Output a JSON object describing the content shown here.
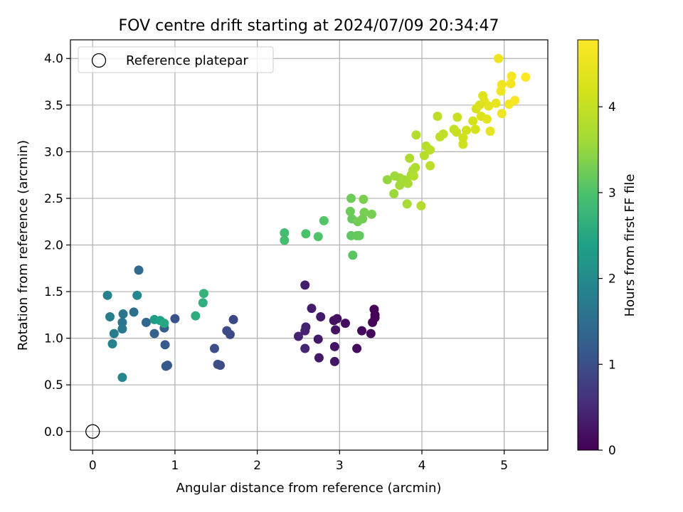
{
  "chart_data": {
    "type": "scatter",
    "title": "FOV centre drift starting at 2024/07/09 20:34:47",
    "xlabel": "Angular distance from reference (arcmin)",
    "ylabel": "Rotation from reference (arcmin)",
    "xlim": [
      -0.27,
      5.53
    ],
    "ylim": [
      -0.2,
      4.2
    ],
    "x_ticks": [
      0,
      1,
      2,
      3,
      4,
      5
    ],
    "y_ticks": [
      0.0,
      0.5,
      1.0,
      1.5,
      2.0,
      2.5,
      3.0,
      3.5,
      4.0
    ],
    "grid": true,
    "legend": {
      "placement": "top-left",
      "entries": [
        "Reference platepar"
      ]
    },
    "reference_point": {
      "x": 0,
      "y": 0,
      "name": "Reference platepar",
      "marker": "open-circle"
    },
    "colorbar": {
      "label": "Hours from first FF file",
      "colormap": "viridis",
      "range": [
        0,
        4.78
      ],
      "ticks": [
        0,
        1,
        2,
        3,
        4
      ]
    },
    "points": [
      {
        "x": 3.42,
        "y": 1.31,
        "c": 0.03
      },
      {
        "x": 3.43,
        "y": 1.25,
        "c": 0.04
      },
      {
        "x": 3.43,
        "y": 1.22,
        "c": 0.05
      },
      {
        "x": 3.4,
        "y": 1.17,
        "c": 0.06
      },
      {
        "x": 3.38,
        "y": 1.05,
        "c": 0.08
      },
      {
        "x": 3.27,
        "y": 1.08,
        "c": 0.1
      },
      {
        "x": 3.21,
        "y": 0.89,
        "c": 0.12
      },
      {
        "x": 3.07,
        "y": 1.16,
        "c": 0.14
      },
      {
        "x": 2.97,
        "y": 1.21,
        "c": 0.16
      },
      {
        "x": 2.93,
        "y": 1.19,
        "c": 0.18
      },
      {
        "x": 2.95,
        "y": 1.09,
        "c": 0.2
      },
      {
        "x": 2.94,
        "y": 0.91,
        "c": 0.22
      },
      {
        "x": 2.94,
        "y": 0.75,
        "c": 0.24
      },
      {
        "x": 2.75,
        "y": 0.79,
        "c": 0.27
      },
      {
        "x": 2.74,
        "y": 0.99,
        "c": 0.29
      },
      {
        "x": 2.77,
        "y": 1.23,
        "c": 0.31
      },
      {
        "x": 2.66,
        "y": 1.32,
        "c": 0.33
      },
      {
        "x": 2.58,
        "y": 1.57,
        "c": 0.36
      },
      {
        "x": 2.59,
        "y": 1.12,
        "c": 0.38
      },
      {
        "x": 2.58,
        "y": 1.08,
        "c": 0.4
      },
      {
        "x": 2.5,
        "y": 1.02,
        "c": 0.42
      },
      {
        "x": 2.58,
        "y": 0.89,
        "c": 0.44
      },
      {
        "x": 1.71,
        "y": 1.2,
        "c": 0.9
      },
      {
        "x": 1.67,
        "y": 1.04,
        "c": 0.92
      },
      {
        "x": 1.63,
        "y": 1.08,
        "c": 0.94
      },
      {
        "x": 1.55,
        "y": 0.71,
        "c": 0.96
      },
      {
        "x": 1.52,
        "y": 0.72,
        "c": 0.98
      },
      {
        "x": 1.48,
        "y": 0.89,
        "c": 1.0
      },
      {
        "x": 1.0,
        "y": 1.21,
        "c": 1.08
      },
      {
        "x": 0.91,
        "y": 0.71,
        "c": 1.12
      },
      {
        "x": 0.89,
        "y": 0.7,
        "c": 1.14
      },
      {
        "x": 0.88,
        "y": 0.93,
        "c": 1.18
      },
      {
        "x": 0.87,
        "y": 1.11,
        "c": 1.22
      },
      {
        "x": 0.75,
        "y": 1.05,
        "c": 1.3
      },
      {
        "x": 0.65,
        "y": 1.17,
        "c": 1.38
      },
      {
        "x": 0.56,
        "y": 1.73,
        "c": 1.45
      },
      {
        "x": 0.5,
        "y": 1.28,
        "c": 1.5
      },
      {
        "x": 0.37,
        "y": 1.26,
        "c": 1.6
      },
      {
        "x": 0.36,
        "y": 1.17,
        "c": 1.64
      },
      {
        "x": 0.36,
        "y": 1.1,
        "c": 1.68
      },
      {
        "x": 0.26,
        "y": 1.05,
        "c": 1.74
      },
      {
        "x": 0.21,
        "y": 1.23,
        "c": 1.78
      },
      {
        "x": 0.18,
        "y": 1.46,
        "c": 1.82
      },
      {
        "x": 0.24,
        "y": 0.94,
        "c": 1.86
      },
      {
        "x": 0.36,
        "y": 0.58,
        "c": 1.9
      },
      {
        "x": 0.54,
        "y": 1.46,
        "c": 1.94
      },
      {
        "x": 0.75,
        "y": 1.2,
        "c": 2.3
      },
      {
        "x": 0.82,
        "y": 1.19,
        "c": 2.4
      },
      {
        "x": 0.87,
        "y": 1.16,
        "c": 2.5
      },
      {
        "x": 1.25,
        "y": 1.24,
        "c": 2.6
      },
      {
        "x": 1.34,
        "y": 1.38,
        "c": 2.65
      },
      {
        "x": 1.35,
        "y": 1.48,
        "c": 2.7
      },
      {
        "x": 2.33,
        "y": 2.13,
        "c": 2.9
      },
      {
        "x": 2.33,
        "y": 2.05,
        "c": 2.92
      },
      {
        "x": 2.59,
        "y": 2.12,
        "c": 2.98
      },
      {
        "x": 2.74,
        "y": 2.09,
        "c": 3.02
      },
      {
        "x": 2.81,
        "y": 2.26,
        "c": 3.06
      },
      {
        "x": 3.16,
        "y": 1.89,
        "c": 3.1
      },
      {
        "x": 3.14,
        "y": 2.1,
        "c": 3.13
      },
      {
        "x": 3.24,
        "y": 2.1,
        "c": 3.15
      },
      {
        "x": 3.21,
        "y": 2.1,
        "c": 3.17
      },
      {
        "x": 3.15,
        "y": 2.28,
        "c": 3.19
      },
      {
        "x": 3.13,
        "y": 2.36,
        "c": 3.21
      },
      {
        "x": 3.14,
        "y": 2.5,
        "c": 3.23
      },
      {
        "x": 3.22,
        "y": 2.25,
        "c": 3.25
      },
      {
        "x": 3.28,
        "y": 2.28,
        "c": 3.27
      },
      {
        "x": 3.3,
        "y": 2.35,
        "c": 3.29
      },
      {
        "x": 3.39,
        "y": 2.33,
        "c": 3.31
      },
      {
        "x": 3.29,
        "y": 2.49,
        "c": 3.33
      },
      {
        "x": 3.58,
        "y": 2.7,
        "c": 3.5
      },
      {
        "x": 3.66,
        "y": 2.55,
        "c": 3.54
      },
      {
        "x": 3.67,
        "y": 2.74,
        "c": 3.57
      },
      {
        "x": 3.73,
        "y": 2.72,
        "c": 3.6
      },
      {
        "x": 3.73,
        "y": 2.64,
        "c": 3.62
      },
      {
        "x": 3.78,
        "y": 2.7,
        "c": 3.64
      },
      {
        "x": 3.82,
        "y": 2.44,
        "c": 3.66
      },
      {
        "x": 3.83,
        "y": 2.66,
        "c": 3.68
      },
      {
        "x": 3.87,
        "y": 2.75,
        "c": 3.7
      },
      {
        "x": 3.89,
        "y": 2.8,
        "c": 3.72
      },
      {
        "x": 3.85,
        "y": 2.93,
        "c": 3.74
      },
      {
        "x": 3.92,
        "y": 2.83,
        "c": 3.76
      },
      {
        "x": 3.9,
        "y": 2.74,
        "c": 3.78
      },
      {
        "x": 3.99,
        "y": 2.42,
        "c": 3.8
      },
      {
        "x": 3.93,
        "y": 3.18,
        "c": 3.82
      },
      {
        "x": 4.03,
        "y": 2.96,
        "c": 3.84
      },
      {
        "x": 4.05,
        "y": 3.06,
        "c": 3.86
      },
      {
        "x": 4.1,
        "y": 3.02,
        "c": 3.88
      },
      {
        "x": 4.1,
        "y": 2.85,
        "c": 3.9
      },
      {
        "x": 4.19,
        "y": 3.38,
        "c": 3.92
      },
      {
        "x": 4.22,
        "y": 3.16,
        "c": 3.94
      },
      {
        "x": 4.26,
        "y": 3.19,
        "c": 3.96
      },
      {
        "x": 4.39,
        "y": 3.24,
        "c": 4.0
      },
      {
        "x": 4.42,
        "y": 3.21,
        "c": 4.03
      },
      {
        "x": 4.43,
        "y": 3.37,
        "c": 4.06
      },
      {
        "x": 4.5,
        "y": 3.08,
        "c": 4.09
      },
      {
        "x": 4.5,
        "y": 3.15,
        "c": 4.12
      },
      {
        "x": 4.54,
        "y": 3.23,
        "c": 4.15
      },
      {
        "x": 4.62,
        "y": 3.33,
        "c": 4.18
      },
      {
        "x": 4.65,
        "y": 3.24,
        "c": 4.21
      },
      {
        "x": 4.66,
        "y": 3.46,
        "c": 4.24
      },
      {
        "x": 4.7,
        "y": 3.5,
        "c": 4.27
      },
      {
        "x": 4.72,
        "y": 3.38,
        "c": 4.3
      },
      {
        "x": 4.74,
        "y": 3.6,
        "c": 4.33
      },
      {
        "x": 4.76,
        "y": 3.54,
        "c": 4.36
      },
      {
        "x": 4.79,
        "y": 3.35,
        "c": 4.39
      },
      {
        "x": 4.81,
        "y": 3.49,
        "c": 4.42
      },
      {
        "x": 4.83,
        "y": 3.22,
        "c": 4.45
      },
      {
        "x": 4.9,
        "y": 3.52,
        "c": 4.48
      },
      {
        "x": 4.93,
        "y": 4.0,
        "c": 4.51
      },
      {
        "x": 4.96,
        "y": 3.65,
        "c": 4.54
      },
      {
        "x": 4.97,
        "y": 3.41,
        "c": 4.57
      },
      {
        "x": 4.97,
        "y": 3.72,
        "c": 4.6
      },
      {
        "x": 5.06,
        "y": 3.51,
        "c": 4.63
      },
      {
        "x": 5.08,
        "y": 3.73,
        "c": 4.66
      },
      {
        "x": 5.09,
        "y": 3.81,
        "c": 4.69
      },
      {
        "x": 5.13,
        "y": 3.55,
        "c": 4.72
      },
      {
        "x": 5.26,
        "y": 3.8,
        "c": 4.76
      }
    ]
  }
}
